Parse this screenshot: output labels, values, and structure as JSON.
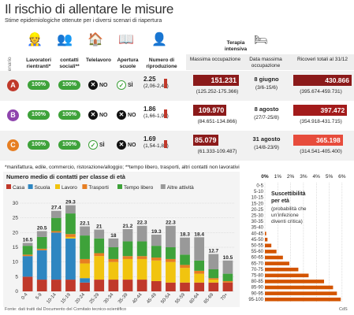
{
  "title": "Il rischio di allentare le misure",
  "subtitle": "Stime epidemiologiche ottenute per i diversi scenari di riapertura",
  "table": {
    "scenario_label": "Scenario",
    "headers": {
      "lavoratori": "Lavoratori rientranti*",
      "contatti": "contatti sociali**",
      "telelavoro": "Telelavoro",
      "scuole": "Apertura scuole",
      "riproduzione": "Numero di riproduzione",
      "terapia": "Terapia intensiva",
      "massima": "Massima occupazione",
      "data": "Data massima occupazione",
      "ricoveri": "Ricoveri totali al 31/12"
    },
    "rows": [
      {
        "id": "A",
        "color": "#c0392b",
        "lavoratori": "100%",
        "contatti": "100%",
        "telelavoro": "NO",
        "scuole": "SÌ",
        "rep": "2.25",
        "rep_range": "(2,06-2,44)",
        "occ": "151.231",
        "occ_range": "(125.252-175.366)",
        "date": "8 giugno",
        "date_range": "(3/6-15/6)",
        "tot": "430.866",
        "tot_range": "(395.674-459.731)",
        "bar": 1.0
      },
      {
        "id": "B",
        "color": "#8e44ad",
        "lavoratori": "100%",
        "contatti": "100%",
        "telelavoro": "NO",
        "scuole": "NO",
        "rep": "1.86",
        "rep_range": "(1,66-1,97)",
        "occ": "109.970",
        "occ_range": "(84.651-134.866)",
        "date": "8 agosto",
        "date_range": "(27/7-25/8)",
        "tot": "397.472",
        "tot_range": "(354.918-431.715)",
        "bar": 0.92
      },
      {
        "id": "C",
        "color": "#e67e22",
        "lavoratori": "100%",
        "contatti": "100%",
        "telelavoro": "SÌ",
        "scuole": "NO",
        "rep": "1.69",
        "rep_range": "(1,54-1,83)",
        "occ": "85.079",
        "occ_range": "(61.333-109.487)",
        "date": "31 agosto",
        "date_range": "(14/8-23/9)",
        "tot": "365.198",
        "tot_range": "(314.541-405.400)",
        "bar": 0.85
      }
    ],
    "occ_fill": [
      1.0,
      0.73,
      0.56
    ]
  },
  "footnote": "*manifattura, edile, commercio, ristorazione/alloggio; **tempo libero, trasporti, altri contatti non lavorativi",
  "chart_data": [
    {
      "type": "bar",
      "title": "Numero medio di contatti per classe di età",
      "categories": [
        "0-4",
        "5-9",
        "10-14",
        "15-19",
        "20-24",
        "25-29",
        "30-34",
        "35-39",
        "40-44",
        "45-49",
        "50-54",
        "55-59",
        "60-64",
        "65-69",
        "70+"
      ],
      "totals": [
        "16.5",
        "20.5",
        "27.4",
        "29.3",
        "22.1",
        "21",
        "18",
        "21.2",
        "22.3",
        "19.3",
        "22.3",
        "18.3",
        "18.4",
        "12.7",
        "10.5"
      ],
      "series": [
        {
          "name": "Casa",
          "color": "#c0392b",
          "values": [
            5,
            4,
            4,
            4,
            3,
            4,
            4,
            4,
            4,
            3.5,
            3,
            3,
            3,
            3,
            3
          ]
        },
        {
          "name": "Scuola",
          "color": "#2e86c1",
          "values": [
            7,
            10,
            16,
            14,
            1.5,
            0,
            0,
            0,
            0,
            0,
            0,
            0,
            0,
            0,
            0
          ]
        },
        {
          "name": "Lavoro",
          "color": "#f1c40f",
          "values": [
            0,
            0,
            0,
            0.5,
            5,
            8,
            6,
            7,
            7,
            7,
            7,
            5,
            3,
            1,
            0
          ]
        },
        {
          "name": "Trasporti",
          "color": "#e67e22",
          "values": [
            0.5,
            0.5,
            0.5,
            1,
            1.5,
            1,
            1,
            1,
            1,
            1,
            1,
            1,
            1,
            0.5,
            0.5
          ]
        },
        {
          "name": "Tempo libero",
          "color": "#3ea23a",
          "values": [
            3,
            4,
            4.5,
            7,
            8,
            5,
            4,
            5,
            5,
            4,
            4,
            3.5,
            3.5,
            3,
            2.5
          ]
        },
        {
          "name": "Altre attività",
          "color": "#999999",
          "values": [
            1,
            2,
            2.4,
            2.8,
            3.1,
            3,
            3,
            4.2,
            5.3,
            3.8,
            7.3,
            5.8,
            7.9,
            5.2,
            4.5
          ]
        }
      ],
      "ylim": [
        0,
        30
      ],
      "yticks": [
        "0",
        "5",
        "10",
        "15",
        "20",
        "25",
        "30"
      ]
    },
    {
      "type": "bar",
      "title": "Suscettibilità per età",
      "note": "(probabilità che un'infezione diventi critica)",
      "categories": [
        "0-5",
        "5-10",
        "10-15",
        "15-20",
        "20-25",
        "25-30",
        "30-35",
        "35-40",
        "40-45",
        "45-50",
        "50-55",
        "55-60",
        "60-65",
        "65-70",
        "70-75",
        "75-80",
        "80-85",
        "85-90",
        "90-95",
        "95-100"
      ],
      "values": [
        0,
        0,
        0,
        0,
        0,
        0,
        0,
        0,
        0.1,
        0.2,
        0.5,
        0.9,
        1.4,
        1.9,
        2.6,
        3.4,
        4.6,
        5.3,
        5.6,
        5.9
      ],
      "xticks": [
        "0%",
        "1%",
        "2%",
        "3%",
        "4%",
        "5%",
        "6%"
      ],
      "xlim": [
        0,
        6.5
      ],
      "color": "#d35400"
    }
  ],
  "source": "Fonte: dati tratti dal Documento del Comitato tecnico-scientifico",
  "credit": "CdS"
}
